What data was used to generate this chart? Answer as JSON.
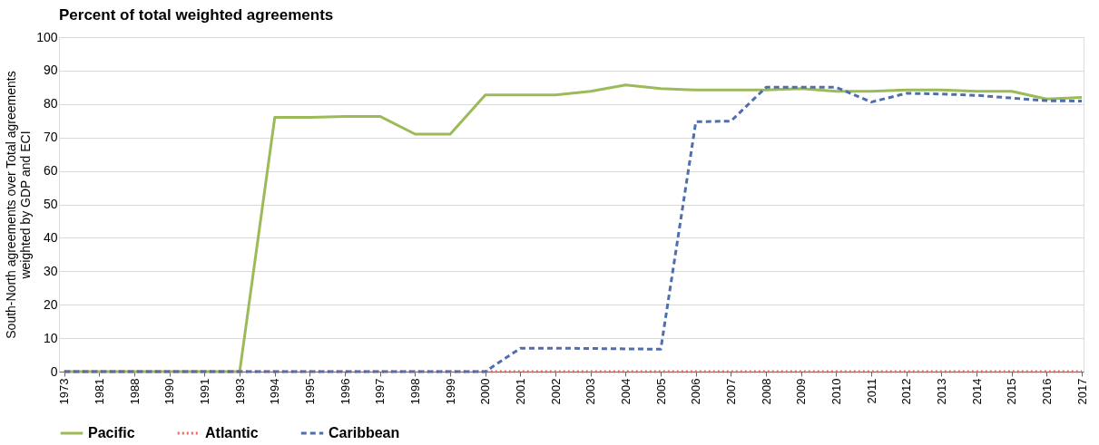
{
  "chart_data": {
    "type": "line",
    "title": "Percent of total weighted agreements",
    "ylabel": "South-North agreements over Total agreements\nweighted by GDP and ECI",
    "categories": [
      "1973",
      "1981",
      "1988",
      "1990",
      "1991",
      "1993",
      "1994",
      "1995",
      "1996",
      "1997",
      "1998",
      "1999",
      "2000",
      "2001",
      "2002",
      "2003",
      "2004",
      "2005",
      "2006",
      "2007",
      "2008",
      "2009",
      "2010",
      "2011",
      "2012",
      "2013",
      "2014",
      "2015",
      "2016",
      "2017"
    ],
    "series": [
      {
        "name": "Pacific",
        "color": "#9bbb59",
        "line_style": "solid",
        "values": [
          0,
          0,
          0,
          0,
          0,
          0,
          76,
          76,
          76.3,
          76.3,
          71,
          71,
          82.7,
          82.7,
          82.7,
          83.8,
          85.7,
          84.6,
          84.2,
          84.2,
          84.2,
          84.6,
          83.8,
          83.8,
          84.2,
          84.2,
          83.8,
          83.8,
          81.5,
          82
        ]
      },
      {
        "name": "Atlantic",
        "color": "#f0645a",
        "line_style": "dotted",
        "values": [
          0,
          0,
          0,
          0,
          0,
          0,
          0,
          0,
          0,
          0,
          0,
          0,
          0,
          0,
          0,
          0,
          0,
          0,
          0,
          0,
          0,
          0,
          0,
          0,
          0,
          0,
          0,
          0,
          0,
          0
        ]
      },
      {
        "name": "Caribbean",
        "color": "#4f6eaf",
        "line_style": "dashed",
        "values": [
          0,
          0,
          0,
          0,
          0,
          0,
          0,
          0,
          0,
          0,
          0,
          0,
          0,
          7,
          7,
          6.9,
          6.8,
          6.7,
          74.7,
          74.9,
          85,
          85,
          85,
          80.6,
          83.2,
          83,
          82.6,
          81.8,
          81,
          80.9
        ]
      }
    ],
    "ylim": [
      0,
      100
    ],
    "yticks": [
      0,
      10,
      20,
      30,
      40,
      50,
      60,
      70,
      80,
      90,
      100
    ],
    "grid": "y",
    "legend": "bottom",
    "marker": "none"
  }
}
